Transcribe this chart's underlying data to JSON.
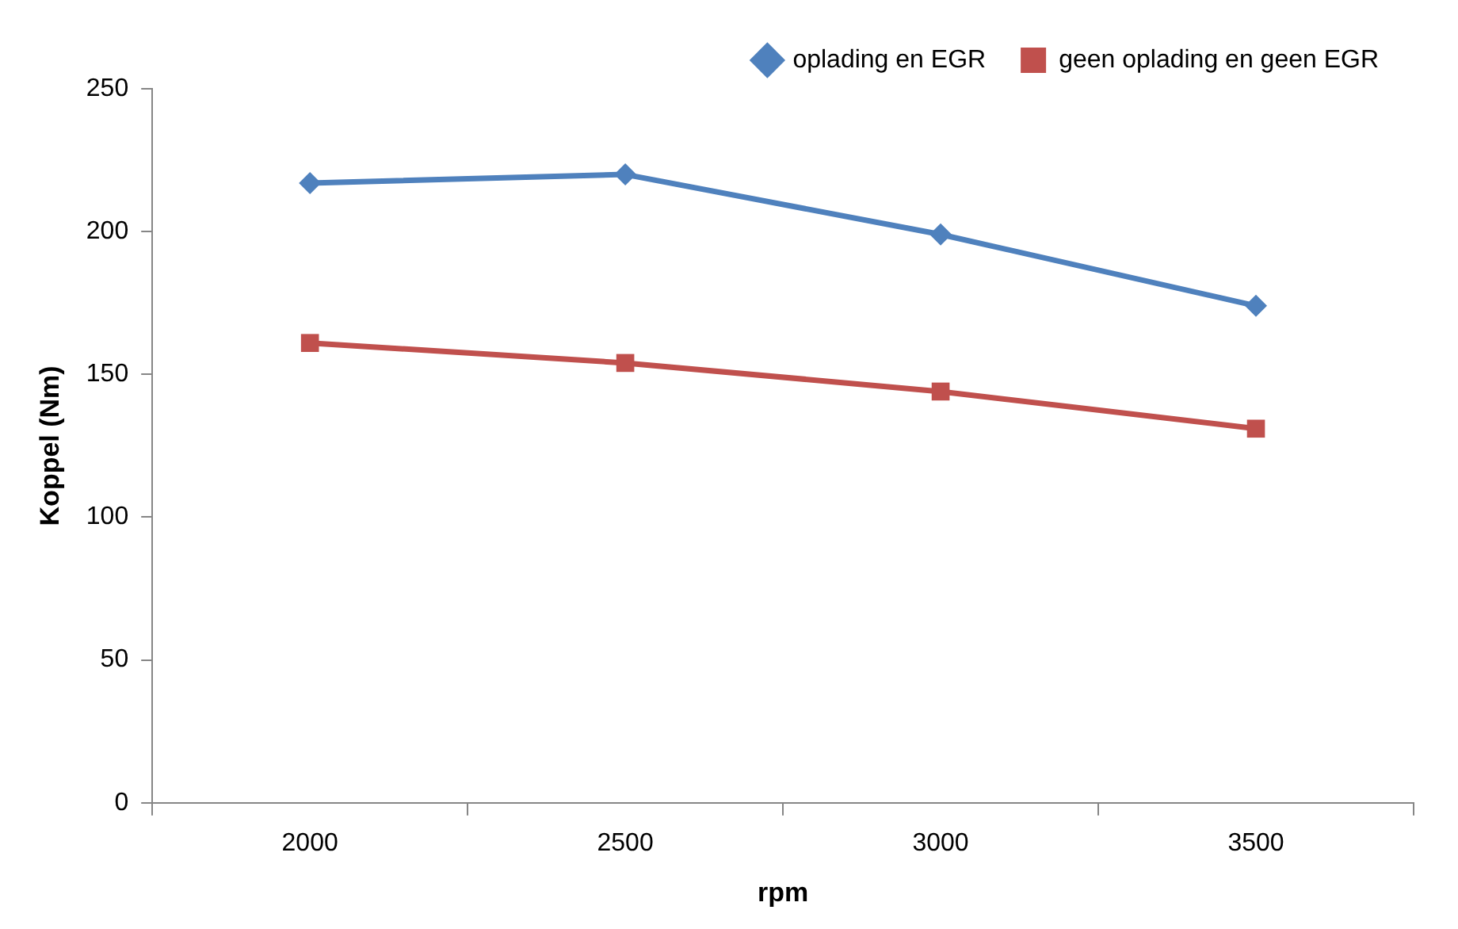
{
  "chart_data": {
    "type": "line",
    "xlabel": "rpm",
    "ylabel": "Koppel (Nm)",
    "categories": [
      "2000",
      "2500",
      "3000",
      "3500"
    ],
    "series": [
      {
        "name": "oplading en EGR",
        "color": "#4f81bd",
        "marker": "diamond",
        "values": [
          217,
          220,
          199,
          174
        ]
      },
      {
        "name": "geen oplading en geen EGR",
        "color": "#c0504d",
        "marker": "square",
        "values": [
          161,
          154,
          144,
          131
        ]
      }
    ],
    "ylim": [
      0,
      250
    ],
    "yticks": [
      0,
      50,
      100,
      150,
      200,
      250
    ],
    "grid": false,
    "legend": "top right"
  }
}
